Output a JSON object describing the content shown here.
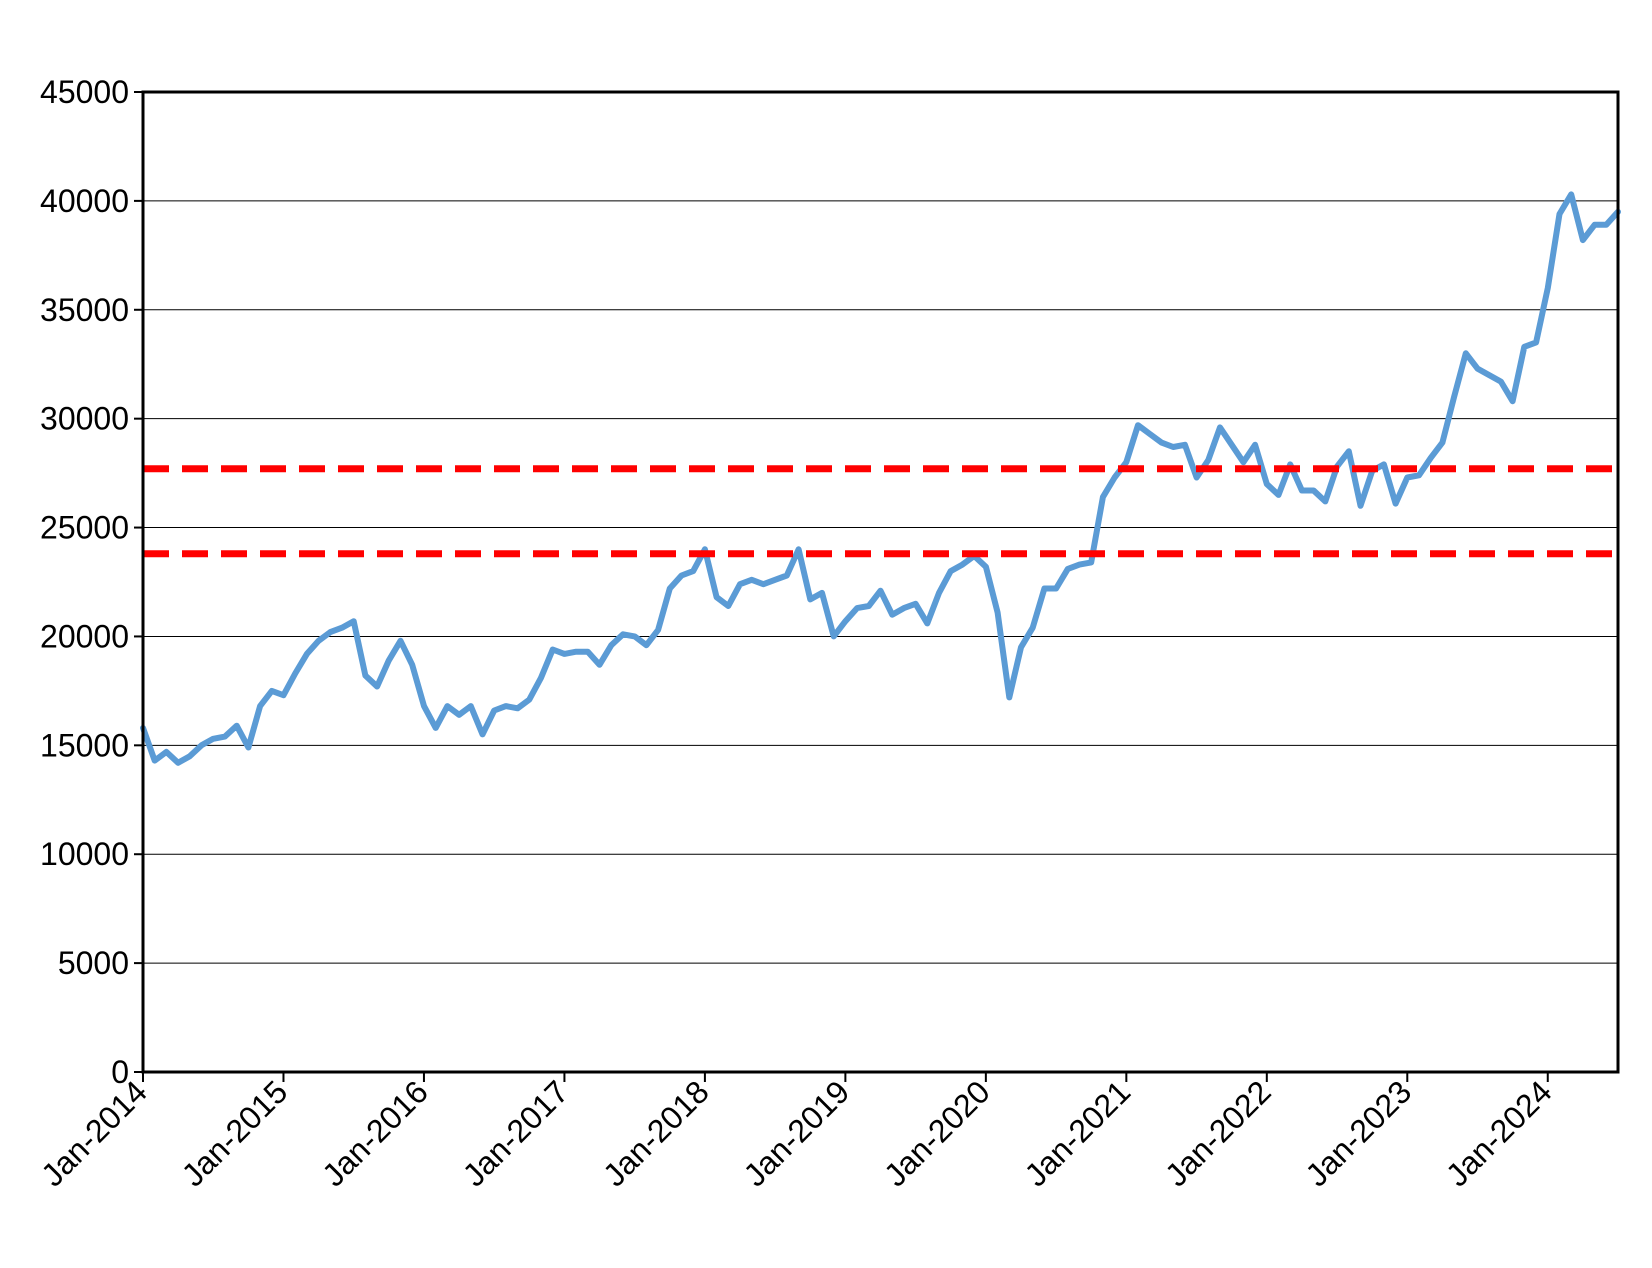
{
  "chart_data": {
    "type": "line",
    "title": "",
    "xlabel": "",
    "ylabel": "",
    "ylim": [
      0,
      45000
    ],
    "yticks": [
      0,
      5000,
      10000,
      15000,
      20000,
      25000,
      30000,
      35000,
      40000,
      45000
    ],
    "ytick_labels": [
      "0",
      "5000",
      "10000",
      "15000",
      "20000",
      "25000",
      "30000",
      "35000",
      "40000",
      "45000"
    ],
    "xlim": [
      "2014-01",
      "2024-07"
    ],
    "xtick_labels": [
      "Jan-2014",
      "Jan-2015",
      "Jan-2016",
      "Jan-2017",
      "Jan-2018",
      "Jan-2019",
      "Jan-2020",
      "Jan-2021",
      "Jan-2022",
      "Jan-2023",
      "Jan-2024"
    ],
    "grid": "horizontal",
    "legend": "none",
    "series": [
      {
        "color": "#5b9bd5",
        "x": [
          "2014-01",
          "2014-02",
          "2014-03",
          "2014-04",
          "2014-05",
          "2014-06",
          "2014-07",
          "2014-08",
          "2014-09",
          "2014-10",
          "2014-11",
          "2014-12",
          "2015-01",
          "2015-02",
          "2015-03",
          "2015-04",
          "2015-05",
          "2015-06",
          "2015-07",
          "2015-08",
          "2015-09",
          "2015-10",
          "2015-11",
          "2015-12",
          "2016-01",
          "2016-02",
          "2016-03",
          "2016-04",
          "2016-05",
          "2016-06",
          "2016-07",
          "2016-08",
          "2016-09",
          "2016-10",
          "2016-11",
          "2016-12",
          "2017-01",
          "2017-02",
          "2017-03",
          "2017-04",
          "2017-05",
          "2017-06",
          "2017-07",
          "2017-08",
          "2017-09",
          "2017-10",
          "2017-11",
          "2017-12",
          "2018-01",
          "2018-02",
          "2018-03",
          "2018-04",
          "2018-05",
          "2018-06",
          "2018-07",
          "2018-08",
          "2018-09",
          "2018-10",
          "2018-11",
          "2018-12",
          "2019-01",
          "2019-02",
          "2019-03",
          "2019-04",
          "2019-05",
          "2019-06",
          "2019-07",
          "2019-08",
          "2019-09",
          "2019-10",
          "2019-11",
          "2019-12",
          "2020-01",
          "2020-02",
          "2020-03",
          "2020-04",
          "2020-05",
          "2020-06",
          "2020-07",
          "2020-08",
          "2020-09",
          "2020-10",
          "2020-11",
          "2020-12",
          "2021-01",
          "2021-02",
          "2021-03",
          "2021-04",
          "2021-05",
          "2021-06",
          "2021-07",
          "2021-08",
          "2021-09",
          "2021-10",
          "2021-11",
          "2021-12",
          "2022-01",
          "2022-02",
          "2022-03",
          "2022-04",
          "2022-05",
          "2022-06",
          "2022-07",
          "2022-08",
          "2022-09",
          "2022-10",
          "2022-11",
          "2022-12",
          "2023-01",
          "2023-02",
          "2023-03",
          "2023-04",
          "2023-05",
          "2023-06",
          "2023-07",
          "2023-08",
          "2023-09",
          "2023-10",
          "2023-11",
          "2023-12",
          "2024-01",
          "2024-02",
          "2024-03",
          "2024-04",
          "2024-05",
          "2024-06",
          "2024-07"
        ],
        "values": [
          15800,
          14300,
          14700,
          14200,
          14500,
          15000,
          15300,
          15400,
          15900,
          14900,
          16800,
          17500,
          17300,
          18300,
          19200,
          19800,
          20200,
          20400,
          20700,
          18200,
          17700,
          18900,
          19800,
          18700,
          16800,
          15800,
          16800,
          16400,
          16800,
          15500,
          16600,
          16800,
          16700,
          17100,
          18100,
          19400,
          19200,
          19300,
          19300,
          18700,
          19600,
          20100,
          20000,
          19600,
          20300,
          22200,
          22800,
          23000,
          24000,
          21800,
          21400,
          22400,
          22600,
          22400,
          22600,
          22800,
          24000,
          21700,
          22000,
          20000,
          20700,
          21300,
          21400,
          22100,
          21000,
          21300,
          21500,
          20600,
          22000,
          23000,
          23300,
          23700,
          23200,
          21100,
          17200,
          19500,
          20400,
          22200,
          22200,
          23100,
          23300,
          23400,
          26400,
          27300,
          28000,
          29700,
          29300,
          28900,
          28700,
          28800,
          27300,
          28100,
          29600,
          28800,
          28000,
          28800,
          27000,
          26500,
          27900,
          26700,
          26700,
          26200,
          27800,
          28500,
          26000,
          27600,
          27900,
          26100,
          27300,
          27400,
          28200,
          28900,
          31000,
          33000,
          32300,
          32000,
          31700,
          30800,
          33300,
          33500,
          36000,
          39400,
          40300,
          38200,
          38900,
          38900,
          39500
        ]
      }
    ],
    "reference_lines": [
      {
        "y": 27700,
        "color": "#ff0000",
        "style": "dashed"
      },
      {
        "y": 23800,
        "color": "#ff0000",
        "style": "dashed"
      }
    ]
  }
}
